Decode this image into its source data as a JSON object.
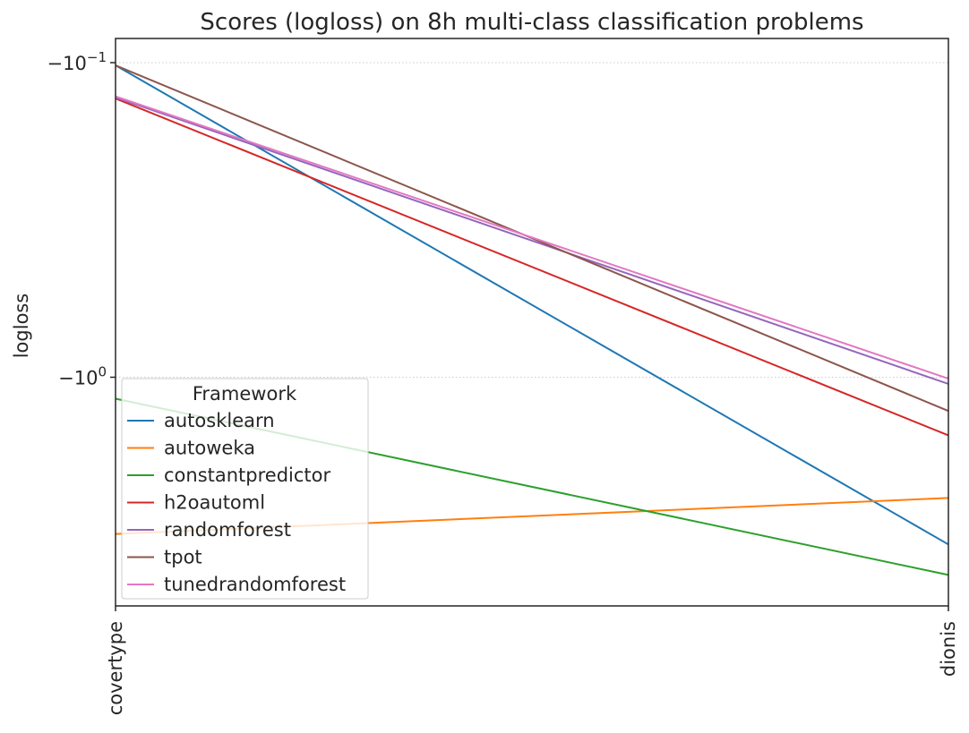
{
  "chart_data": {
    "type": "line",
    "title": "Scores (logloss) on 8h multi-class classification problems",
    "xlabel": "",
    "ylabel": "logloss",
    "categories": [
      "covertype",
      "dionis"
    ],
    "yscale": "symlog",
    "yticks": [
      {
        "value": -0.1,
        "label_base": "−10",
        "label_exp": "−1"
      },
      {
        "value": -1.0,
        "label_base": "−10",
        "label_exp": "0"
      }
    ],
    "grid": "horizontal dotted",
    "legend": {
      "title": "Framework",
      "placement": "lower-left"
    },
    "series": [
      {
        "name": "autosklearn",
        "color": "#1f77b4",
        "values": [
          -0.102,
          -3.4
        ]
      },
      {
        "name": "autoweka",
        "color": "#ff7f0e",
        "values": [
          -3.15,
          -2.42
        ]
      },
      {
        "name": "constantpredictor",
        "color": "#2ca02c",
        "values": [
          -1.17,
          -4.25
        ]
      },
      {
        "name": "h2oautoml",
        "color": "#d62728",
        "values": [
          -0.13,
          -1.53
        ]
      },
      {
        "name": "randomforest",
        "color": "#9467bd",
        "values": [
          -0.129,
          -1.05
        ]
      },
      {
        "name": "tpot",
        "color": "#8c564b",
        "values": [
          -0.102,
          -1.28
        ]
      },
      {
        "name": "tunedrandomforest",
        "color": "#e377c2",
        "values": [
          -0.128,
          -1.01
        ]
      }
    ]
  }
}
